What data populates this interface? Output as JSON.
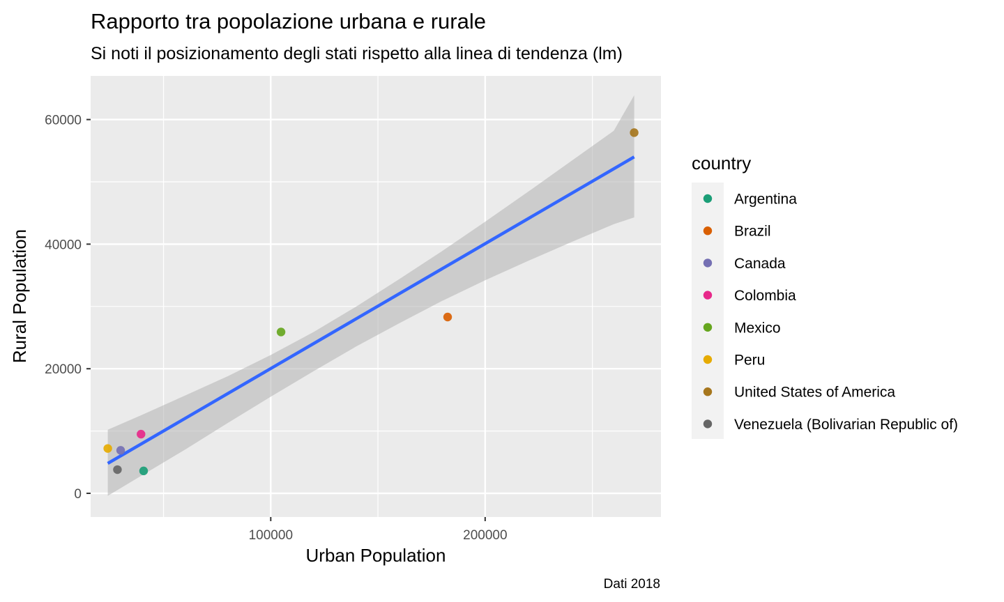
{
  "chart_data": {
    "type": "scatter",
    "title": "Rapporto tra popolazione urbana e rurale",
    "subtitle": "Si noti il posizionamento degli stati rispetto alla linea di tendenza (lm)",
    "xlabel": "Urban Population",
    "ylabel": "Rural Population",
    "caption": "Dati 2018",
    "xlim": [
      16000,
      282000
    ],
    "ylim": [
      -3800,
      67000
    ],
    "x_ticks": [
      100000,
      200000
    ],
    "x_tick_labels": [
      "100000",
      "200000"
    ],
    "x_minor": [
      50000,
      150000,
      250000
    ],
    "y_ticks": [
      0,
      20000,
      40000,
      60000
    ],
    "y_tick_labels": [
      "0",
      "20000",
      "40000",
      "60000"
    ],
    "y_minor": [
      10000,
      30000,
      50000
    ],
    "grid": true,
    "panel_background": "#ebebeb",
    "legend": {
      "title": "country",
      "position": "right"
    },
    "series": [
      {
        "name": "Argentina",
        "color": "#1b9e77",
        "x": 40700,
        "y": 3600
      },
      {
        "name": "Brazil",
        "color": "#d95f02",
        "x": 182500,
        "y": 28300
      },
      {
        "name": "Canada",
        "color": "#7570b3",
        "x": 30000,
        "y": 6900
      },
      {
        "name": "Colombia",
        "color": "#e7298a",
        "x": 39500,
        "y": 9500
      },
      {
        "name": "Mexico",
        "color": "#66a61e",
        "x": 104800,
        "y": 25900
      },
      {
        "name": "Peru",
        "color": "#e6ab02",
        "x": 24000,
        "y": 7200
      },
      {
        "name": "United States of America",
        "color": "#a6761d",
        "x": 269500,
        "y": 57900
      },
      {
        "name": "Venezuela (Bolivarian Republic of)",
        "color": "#666666",
        "x": 28500,
        "y": 3800
      }
    ],
    "trend_line": {
      "method": "lm",
      "color": "#3366ff",
      "x": [
        24000,
        269500
      ],
      "y": [
        4800,
        54000
      ]
    },
    "confidence_band": {
      "color": "#b3b3b3",
      "x": [
        24000,
        40000,
        60000,
        80000,
        100000,
        120000,
        140000,
        160000,
        180000,
        200000,
        220000,
        240000,
        260000,
        269500
      ],
      "upper": [
        10200,
        12600,
        15700,
        18800,
        22200,
        25900,
        30000,
        34400,
        38900,
        43600,
        48400,
        53300,
        58200,
        63900
      ],
      "lower": [
        -400,
        2900,
        7000,
        11300,
        15500,
        19600,
        23600,
        27300,
        30900,
        34200,
        37300,
        40300,
        43200,
        44300
      ]
    }
  }
}
